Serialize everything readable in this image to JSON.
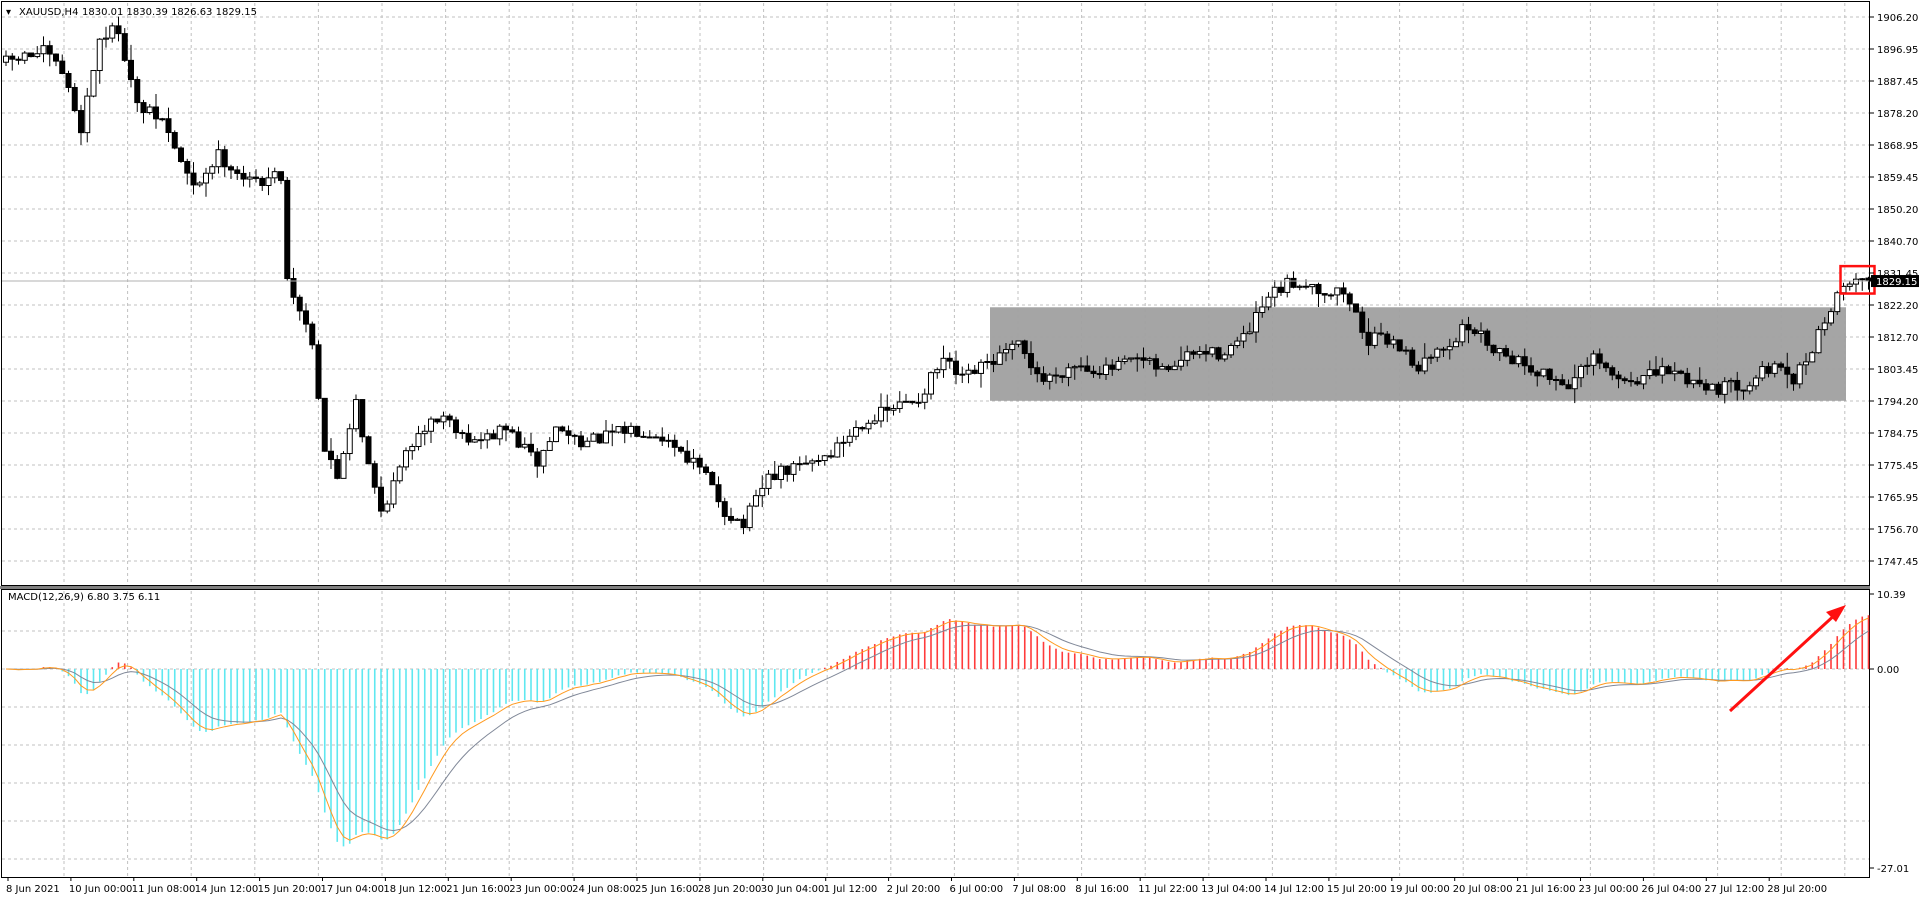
{
  "window": {
    "symbol_label": "XAUUSD,H4",
    "ohlc_label": "1830.01 1830.39 1826.63 1829.15",
    "dropdown_glyph": "▾"
  },
  "price_axis": {
    "labels": [
      "1906.20",
      "1896.95",
      "1887.45",
      "1878.20",
      "1868.95",
      "1859.45",
      "1850.20",
      "1840.70",
      "1831.45",
      "1822.20",
      "1812.70",
      "1803.45",
      "1794.20",
      "1784.75",
      "1775.45",
      "1765.95",
      "1756.70",
      "1747.45"
    ],
    "current_price_label": "1829.15"
  },
  "macd": {
    "label": "MACD(12,26,9) 6.80 3.75 6.11",
    "axis_labels": [
      "10.39",
      "0.00",
      "-27.01"
    ]
  },
  "time_axis": {
    "labels": [
      "8 Jun 2021",
      "10 Jun 00:00",
      "11 Jun 08:00",
      "14 Jun 12:00",
      "15 Jun 20:00",
      "17 Jun 04:00",
      "18 Jun 12:00",
      "21 Jun 16:00",
      "23 Jun 00:00",
      "24 Jun 08:00",
      "25 Jun 16:00",
      "28 Jun 20:00",
      "30 Jun 04:00",
      "1 Jul 12:00",
      "2 Jul 20:00",
      "6 Jul 00:00",
      "7 Jul 08:00",
      "8 Jul 16:00",
      "11 Jul 22:00",
      "13 Jul 04:00",
      "14 Jul 12:00",
      "15 Jul 20:00",
      "19 Jul 00:00",
      "20 Jul 08:00",
      "21 Jul 16:00",
      "23 Jul 00:00",
      "26 Jul 04:00",
      "27 Jul 12:00",
      "28 Jul 20:00"
    ]
  },
  "colors": {
    "bull_fill": "#ffffff",
    "bear_fill": "#000000",
    "grid": "#c0c0c0",
    "range_box": "#a0a0a0",
    "macd_positive": "#ff3b3b",
    "macd_negative": "#5fe8f0",
    "macd_line": "#ff9a1f",
    "signal_line": "#808898",
    "annotation": "#ff1010"
  },
  "chart_data": [
    {
      "type": "candlestick",
      "symbol": "XAUUSD",
      "timeframe": "H4",
      "ylim": [
        1747.45,
        1910.0
      ],
      "grid": true,
      "current_price": 1829.15,
      "last_bar": {
        "open": 1830.01,
        "high": 1830.39,
        "low": 1826.63,
        "close": 1829.15
      },
      "range_box": {
        "low": 1794.2,
        "high": 1821.5
      },
      "waypoints": [
        {
          "bar": 0,
          "price": 1893
        },
        {
          "bar": 6,
          "price": 1896
        },
        {
          "bar": 9,
          "price": 1890
        },
        {
          "bar": 12,
          "price": 1874
        },
        {
          "bar": 15,
          "price": 1900
        },
        {
          "bar": 18,
          "price": 1903
        },
        {
          "bar": 21,
          "price": 1880
        },
        {
          "bar": 25,
          "price": 1876
        },
        {
          "bar": 30,
          "price": 1856
        },
        {
          "bar": 34,
          "price": 1866
        },
        {
          "bar": 39,
          "price": 1858
        },
        {
          "bar": 44,
          "price": 1860
        },
        {
          "bar": 45,
          "price": 1830
        },
        {
          "bar": 49,
          "price": 1812
        },
        {
          "bar": 51,
          "price": 1780
        },
        {
          "bar": 53,
          "price": 1772
        },
        {
          "bar": 56,
          "price": 1795
        },
        {
          "bar": 58,
          "price": 1775
        },
        {
          "bar": 60,
          "price": 1762
        },
        {
          "bar": 66,
          "price": 1786
        },
        {
          "bar": 70,
          "price": 1790
        },
        {
          "bar": 75,
          "price": 1782
        },
        {
          "bar": 80,
          "price": 1786
        },
        {
          "bar": 85,
          "price": 1776
        },
        {
          "bar": 88,
          "price": 1786
        },
        {
          "bar": 93,
          "price": 1782
        },
        {
          "bar": 100,
          "price": 1786
        },
        {
          "bar": 104,
          "price": 1785
        },
        {
          "bar": 108,
          "price": 1780
        },
        {
          "bar": 112,
          "price": 1772
        },
        {
          "bar": 115,
          "price": 1762
        },
        {
          "bar": 118,
          "price": 1758
        },
        {
          "bar": 122,
          "price": 1772
        },
        {
          "bar": 127,
          "price": 1775
        },
        {
          "bar": 132,
          "price": 1779
        },
        {
          "bar": 137,
          "price": 1788
        },
        {
          "bar": 142,
          "price": 1792
        },
        {
          "bar": 146,
          "price": 1795
        },
        {
          "bar": 150,
          "price": 1806
        },
        {
          "bar": 153,
          "price": 1800
        },
        {
          "bar": 157,
          "price": 1805
        },
        {
          "bar": 162,
          "price": 1810
        },
        {
          "bar": 166,
          "price": 1800
        },
        {
          "bar": 171,
          "price": 1805
        },
        {
          "bar": 176,
          "price": 1803
        },
        {
          "bar": 181,
          "price": 1806
        },
        {
          "bar": 185,
          "price": 1803
        },
        {
          "bar": 190,
          "price": 1808
        },
        {
          "bar": 194,
          "price": 1808
        },
        {
          "bar": 198,
          "price": 1812
        },
        {
          "bar": 202,
          "price": 1824
        },
        {
          "bar": 205,
          "price": 1828
        },
        {
          "bar": 208,
          "price": 1829
        },
        {
          "bar": 211,
          "price": 1826
        },
        {
          "bar": 214,
          "price": 1826
        },
        {
          "bar": 218,
          "price": 1812
        },
        {
          "bar": 222,
          "price": 1812
        },
        {
          "bar": 226,
          "price": 1804
        },
        {
          "bar": 230,
          "price": 1810
        },
        {
          "bar": 234,
          "price": 1816
        },
        {
          "bar": 238,
          "price": 1810
        },
        {
          "bar": 242,
          "price": 1806
        },
        {
          "bar": 246,
          "price": 1802
        },
        {
          "bar": 250,
          "price": 1799
        },
        {
          "bar": 254,
          "price": 1806
        },
        {
          "bar": 258,
          "price": 1800
        },
        {
          "bar": 262,
          "price": 1801
        },
        {
          "bar": 266,
          "price": 1803
        },
        {
          "bar": 270,
          "price": 1800
        },
        {
          "bar": 274,
          "price": 1798
        },
        {
          "bar": 278,
          "price": 1799
        },
        {
          "bar": 282,
          "price": 1804
        },
        {
          "bar": 286,
          "price": 1800
        },
        {
          "bar": 288,
          "price": 1806
        },
        {
          "bar": 291,
          "price": 1818
        },
        {
          "bar": 293,
          "price": 1824
        },
        {
          "bar": 295,
          "price": 1830
        },
        {
          "bar": 298,
          "price": 1829.15
        }
      ]
    },
    {
      "type": "bar",
      "indicator": "MACD",
      "params": [
        12,
        26,
        9
      ],
      "values": {
        "macd": 6.8,
        "signal": 3.75,
        "histogram": 6.11
      },
      "ylim": [
        -27.01,
        10.39
      ],
      "series": [
        {
          "name": "MACD",
          "kind": "histogram"
        },
        {
          "name": "",
          "kind": "line"
        },
        {
          "name": "",
          "kind": "line"
        }
      ]
    }
  ]
}
